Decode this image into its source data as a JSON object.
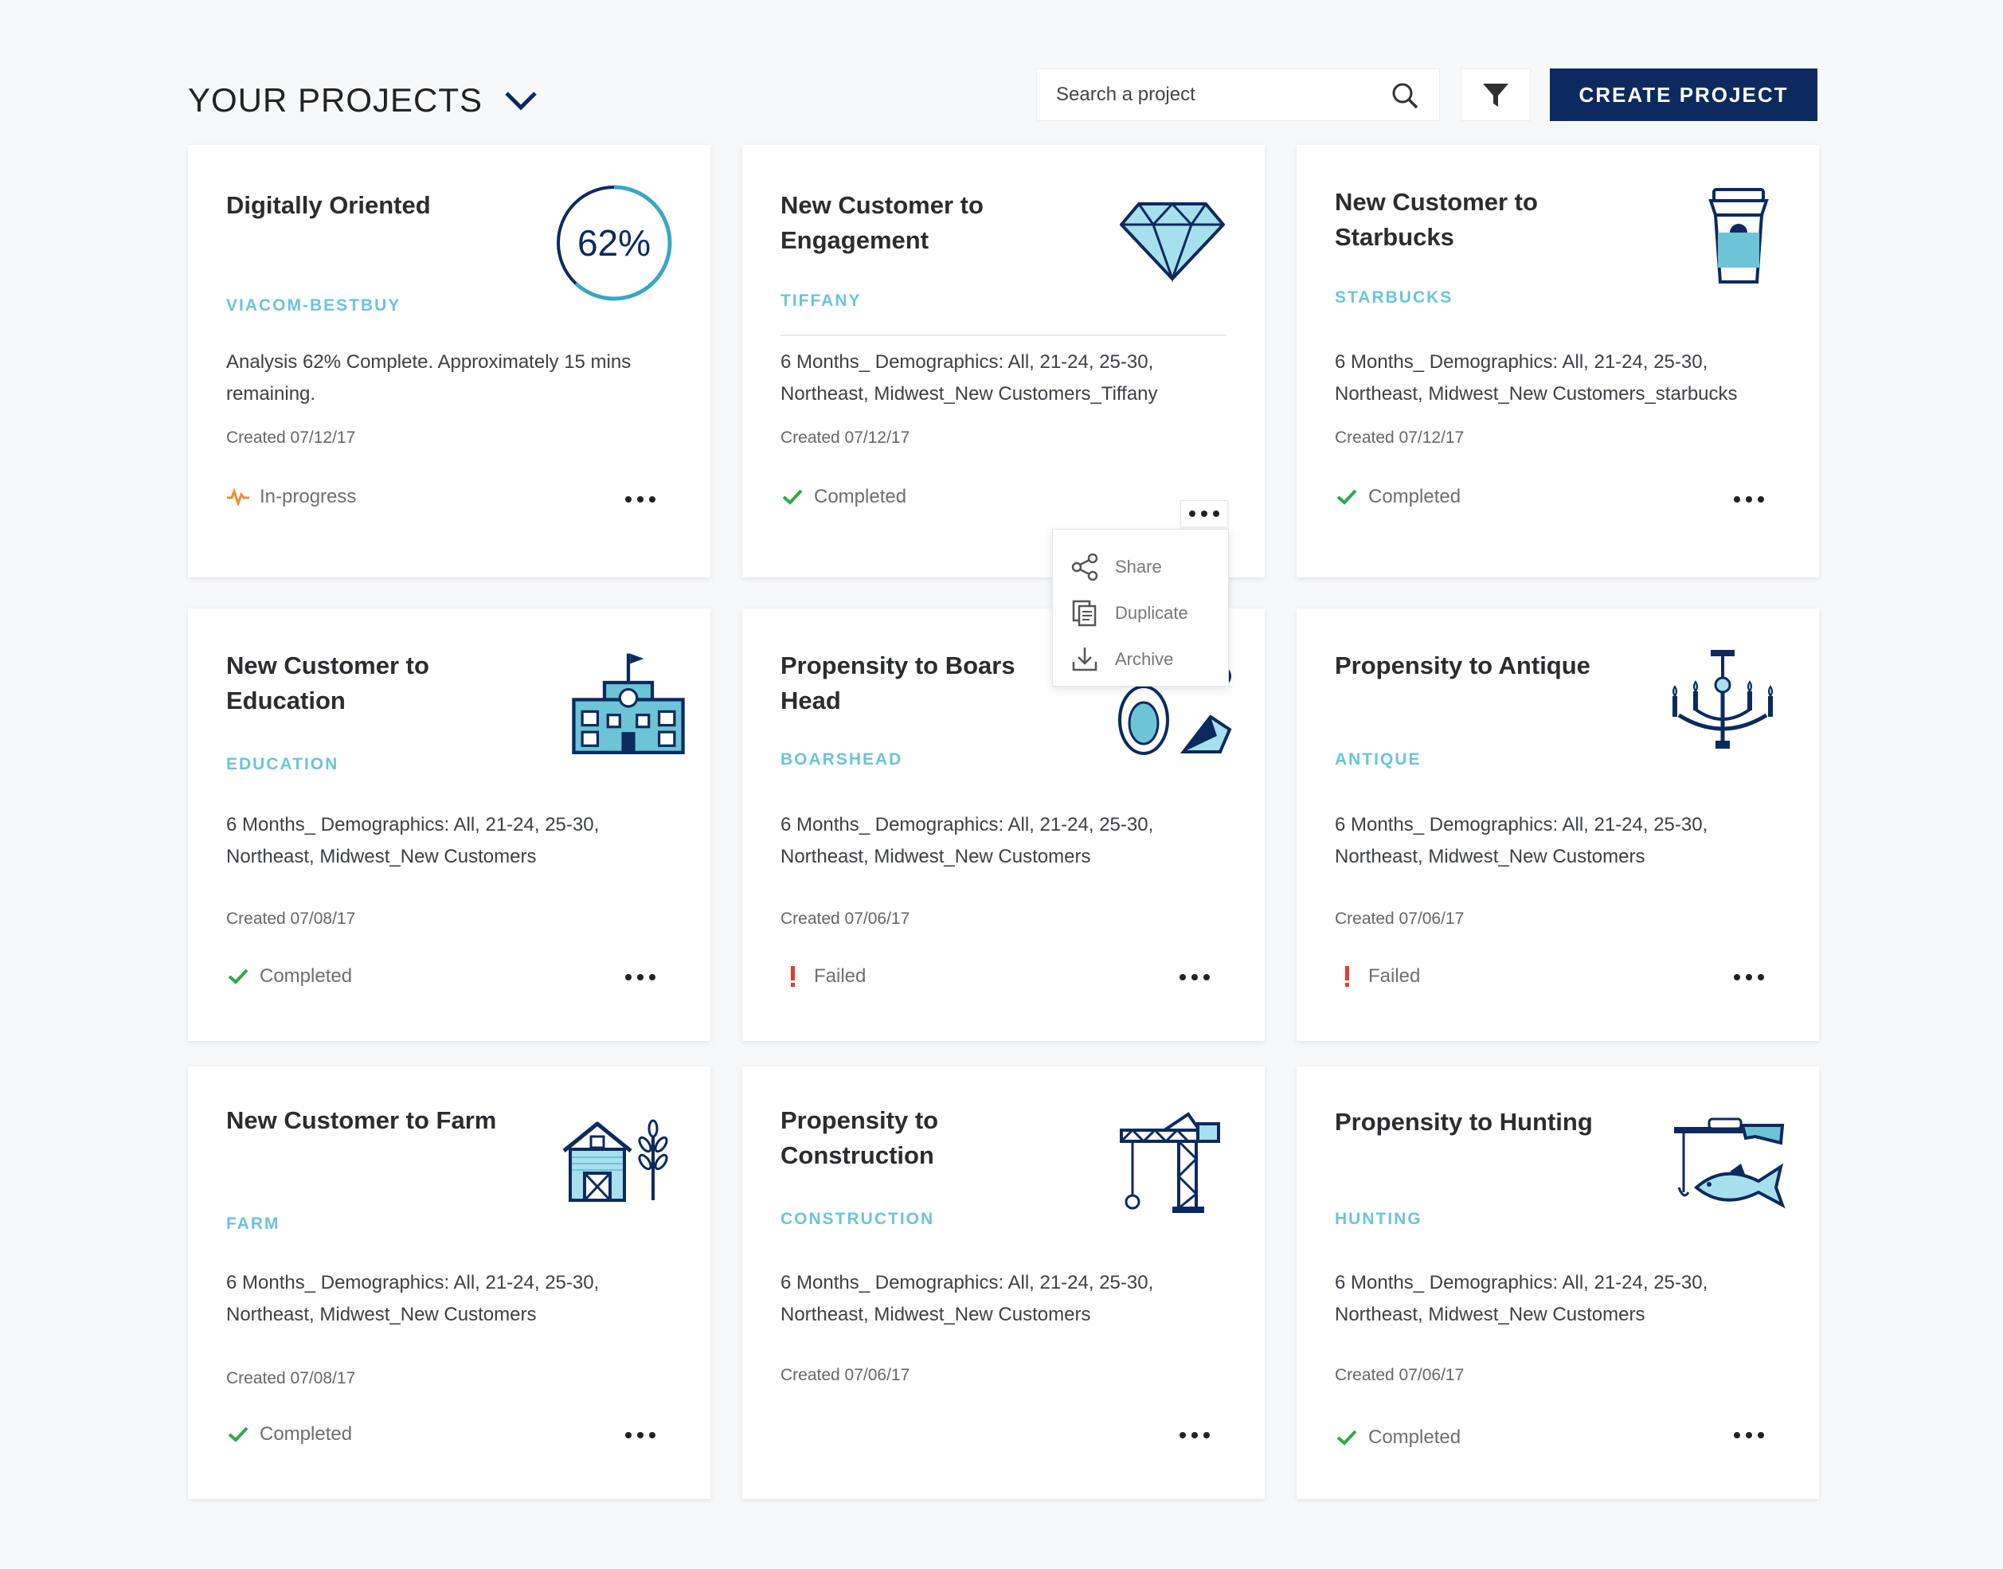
{
  "header": {
    "title": "YOUR PROJECTS",
    "search_placeholder": "Search a project",
    "create_label": "CREATE PROJECT"
  },
  "colors": {
    "navy": "#0c2a5e",
    "accent_teal": "#6cc4d6",
    "light_blue": "#a6e0ec",
    "success": "#2ea84a",
    "failed": "#e53935",
    "in_progress": "#f28c28"
  },
  "cards": [
    {
      "title": "Digitally Oriented",
      "client": "VIACOM-BESTBUY",
      "progress_percent": "62%",
      "description": "Analysis 62% Complete.  Approximately 15 mins remaining.",
      "created": "Created 07/12/17",
      "status": "In-progress",
      "status_icon": "activity-pulse-icon"
    },
    {
      "title": "New Customer to Engagement",
      "client": "TIFFANY",
      "icon": "diamond-icon",
      "description": "6 Months_ Demographics: All, 21-24, 25-30, Northeast, Midwest_New Customers_Tiffany",
      "created": "Created 07/12/17",
      "status": "Completed",
      "status_icon": "check-icon"
    },
    {
      "title": "New Customer to Starbucks",
      "client": "STARBUCKS",
      "icon": "coffee-cup-icon",
      "description": "6 Months_ Demographics: All, 21-24, 25-30, Northeast, Midwest_New Customers_starbucks",
      "created": "Created 07/12/17",
      "status": "Completed",
      "status_icon": "check-icon"
    },
    {
      "title": "New Customer to Education",
      "client": "EDUCATION",
      "icon": "school-building-icon",
      "description": "6 Months_ Demographics: All, 21-24, 25-30, Northeast, Midwest_New Customers",
      "created": "Created 07/08/17",
      "status": "Completed",
      "status_icon": "check-icon"
    },
    {
      "title": "Propensity to Boars Head",
      "client": "BOARSHEAD",
      "icon": "deli-meat-icon",
      "description": "6 Months_ Demographics: All, 21-24, 25-30, Northeast, Midwest_New Customers",
      "created": "Created 07/06/17",
      "status": "Failed",
      "status_icon": "exclamation-icon"
    },
    {
      "title": "Propensity to Antique",
      "client": "ANTIQUE",
      "icon": "chandelier-icon",
      "description": "6 Months_ Demographics: All, 21-24, 25-30, Northeast, Midwest_New Customers",
      "created": "Created 07/06/17",
      "status": "Failed",
      "status_icon": "exclamation-icon"
    },
    {
      "title": "New Customer to Farm",
      "client": "FARM",
      "icon": "barn-wheat-icon",
      "description": "6 Months_ Demographics: All, 21-24, 25-30, Northeast, Midwest_New Customers",
      "created": "Created 07/08/17",
      "status": "Completed",
      "status_icon": "check-icon"
    },
    {
      "title": "Propensity to Construction",
      "client": "CONSTRUCTION",
      "icon": "crane-icon",
      "description": "6 Months_ Demographics: All, 21-24, 25-30, Northeast, Midwest_New Customers",
      "created": "Created 07/06/17",
      "status": "",
      "status_icon": ""
    },
    {
      "title": "Propensity to Hunting",
      "client": "HUNTING",
      "icon": "rifle-fish-icon",
      "description": "6 Months_ Demographics: All, 21-24, 25-30, Northeast, Midwest_New Customers",
      "created": "Created 07/06/17",
      "status": "Completed",
      "status_icon": "check-icon"
    }
  ],
  "context_menu": {
    "items": [
      {
        "label": "Share",
        "icon": "share-icon"
      },
      {
        "label": "Duplicate",
        "icon": "duplicate-icon"
      },
      {
        "label": "Archive",
        "icon": "archive-download-icon"
      }
    ]
  }
}
